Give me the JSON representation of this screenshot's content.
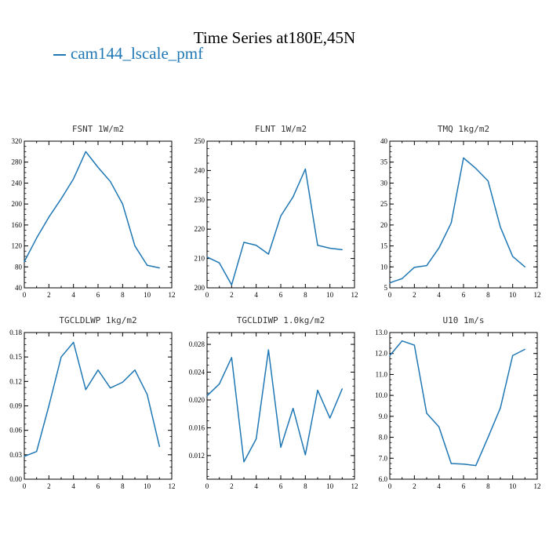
{
  "figure": {
    "title": "Time Series at180E,45N",
    "legend_label": "cam144_lscale_pmf",
    "line_color": "#1f77b4"
  },
  "chart_data": [
    {
      "type": "line",
      "title": "FSNT  1W/m2",
      "x": [
        0,
        1,
        2,
        3,
        4,
        5,
        6,
        7,
        8,
        9,
        10,
        11
      ],
      "series": [
        {
          "name": "cam144_lscale_pmf",
          "values": [
            90,
            135,
            175,
            210,
            248,
            300,
            270,
            243,
            200,
            120,
            83,
            78
          ]
        }
      ],
      "xlim": [
        0,
        12
      ],
      "xticks": [
        0,
        2,
        4,
        6,
        8,
        10,
        12
      ],
      "ylim": [
        40,
        320
      ],
      "yticks": [
        40,
        80,
        120,
        160,
        200,
        240,
        280,
        320
      ],
      "ytick_labels": [
        "40",
        "80",
        "120",
        "160",
        "200",
        "240",
        "280",
        "320"
      ]
    },
    {
      "type": "line",
      "title": "FLNT  1W/m2",
      "x": [
        0,
        1,
        2,
        3,
        4,
        5,
        6,
        7,
        8,
        9,
        10,
        11
      ],
      "series": [
        {
          "name": "cam144_lscale_pmf",
          "values": [
            210.5,
            208.5,
            201,
            215.5,
            214.5,
            211.5,
            224.5,
            231,
            240.5,
            214.5,
            213.5,
            213
          ]
        }
      ],
      "xlim": [
        0,
        12
      ],
      "xticks": [
        0,
        2,
        4,
        6,
        8,
        10,
        12
      ],
      "ylim": [
        200,
        250
      ],
      "yticks": [
        200,
        210,
        220,
        230,
        240,
        250
      ],
      "ytick_labels": [
        "200",
        "210",
        "220",
        "230",
        "240",
        "250"
      ]
    },
    {
      "type": "line",
      "title": "TMQ  1kg/m2",
      "x": [
        0,
        1,
        2,
        3,
        4,
        5,
        6,
        7,
        8,
        9,
        10,
        11
      ],
      "series": [
        {
          "name": "cam144_lscale_pmf",
          "values": [
            6.2,
            7.2,
            9.9,
            10.3,
            14.5,
            20.5,
            36,
            33.5,
            30.5,
            19.5,
            12.5,
            10
          ]
        }
      ],
      "xlim": [
        0,
        12
      ],
      "xticks": [
        0,
        2,
        4,
        6,
        8,
        10,
        12
      ],
      "ylim": [
        5,
        40
      ],
      "yticks": [
        5,
        10,
        15,
        20,
        25,
        30,
        35,
        40
      ],
      "ytick_labels": [
        "5",
        "10",
        "15",
        "20",
        "25",
        "30",
        "35",
        "40"
      ]
    },
    {
      "type": "line",
      "title": "TGCLDLWP  1kg/m2",
      "x": [
        0,
        1,
        2,
        3,
        4,
        5,
        6,
        7,
        8,
        9,
        10,
        11
      ],
      "series": [
        {
          "name": "cam144_lscale_pmf",
          "values": [
            0.028,
            0.034,
            0.09,
            0.15,
            0.168,
            0.11,
            0.134,
            0.112,
            0.119,
            0.134,
            0.104,
            0.04
          ]
        }
      ],
      "xlim": [
        0,
        12
      ],
      "xticks": [
        0,
        2,
        4,
        6,
        8,
        10,
        12
      ],
      "ylim": [
        0,
        0.18
      ],
      "yticks": [
        0,
        0.03,
        0.06,
        0.09,
        0.12,
        0.15,
        0.18
      ],
      "ytick_labels": [
        "0.00",
        "0.03",
        "0.06",
        "0.09",
        "0.12",
        "0.15",
        "0.18"
      ]
    },
    {
      "type": "line",
      "title": "TGCLDIWP  1.0kg/m2",
      "x": [
        0,
        1,
        2,
        3,
        4,
        5,
        6,
        7,
        8,
        9,
        10,
        11
      ],
      "series": [
        {
          "name": "cam144_lscale_pmf",
          "values": [
            0.0206,
            0.0223,
            0.0261,
            0.0111,
            0.0144,
            0.0272,
            0.0132,
            0.0188,
            0.0121,
            0.0214,
            0.0174,
            0.0216
          ]
        }
      ],
      "xlim": [
        0,
        12
      ],
      "xticks": [
        0,
        2,
        4,
        6,
        8,
        10,
        12
      ],
      "ylim": [
        0.0086,
        0.0297
      ],
      "yticks": [
        0.012,
        0.016,
        0.02,
        0.024,
        0.028
      ],
      "ytick_labels": [
        "0.012",
        "0.016",
        "0.020",
        "0.024",
        "0.028"
      ]
    },
    {
      "type": "line",
      "title": "U10  1m/s",
      "x": [
        0,
        1,
        2,
        3,
        4,
        5,
        6,
        7,
        8,
        9,
        10,
        11
      ],
      "series": [
        {
          "name": "cam144_lscale_pmf",
          "values": [
            11.9,
            12.6,
            12.4,
            9.15,
            8.5,
            6.75,
            6.72,
            6.65,
            8.0,
            9.4,
            11.9,
            12.2
          ]
        }
      ],
      "xlim": [
        0,
        12
      ],
      "xticks": [
        0,
        2,
        4,
        6,
        8,
        10,
        12
      ],
      "ylim": [
        6,
        13
      ],
      "yticks": [
        6,
        7,
        8,
        9,
        10,
        11,
        12,
        13
      ],
      "ytick_labels": [
        "6.0",
        "7.0",
        "8.0",
        "9.0",
        "10.0",
        "11.0",
        "12.0",
        "13.0"
      ]
    }
  ]
}
